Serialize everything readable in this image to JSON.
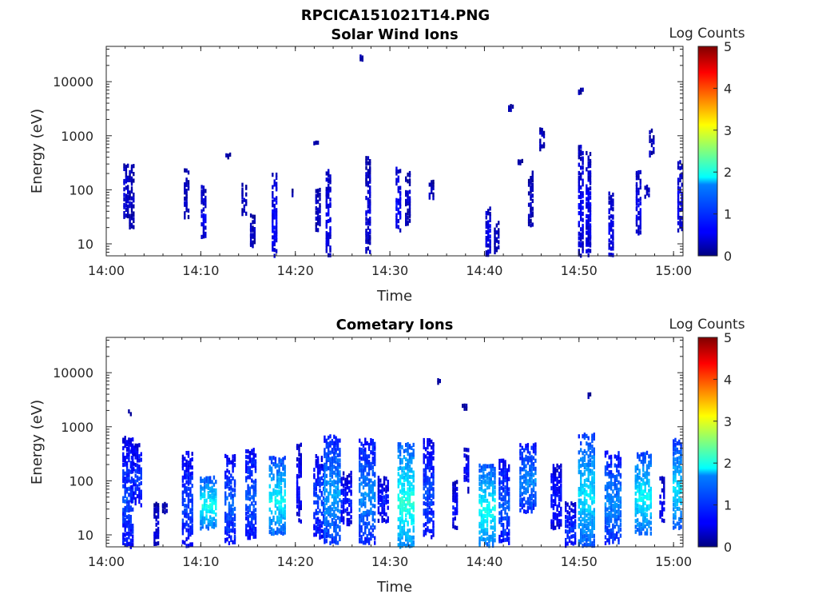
{
  "figure_title": "RPCICA151021T14.PNG",
  "colorbar_colormap": "jet",
  "chart_data": [
    {
      "type": "heatmap",
      "title": "Solar Wind Ions",
      "xlabel": "Time",
      "ylabel": "Energy (eV)",
      "y_scale": "log",
      "xlim": [
        "14:00",
        "15:01"
      ],
      "ylim": [
        6,
        45000
      ],
      "x_ticks": [
        "14:00",
        "14:10",
        "14:20",
        "14:30",
        "14:40",
        "14:50",
        "15:00"
      ],
      "y_ticks": [
        "10",
        "100",
        "1000",
        "10000"
      ],
      "colorbar": {
        "label": "Log Counts",
        "range": [
          0,
          5
        ],
        "ticks": [
          "0",
          "1",
          "2",
          "3",
          "4",
          "5"
        ]
      },
      "bursts": [
        {
          "t": 2.1,
          "e_lo": 35,
          "e_hi": 300,
          "level": 0.4
        },
        {
          "t": 2.7,
          "e_lo": 22,
          "e_hi": 300,
          "level": 0.3
        },
        {
          "t": 8.5,
          "e_lo": 35,
          "e_hi": 250,
          "level": 0.3
        },
        {
          "t": 10.3,
          "e_lo": 15,
          "e_hi": 120,
          "level": 0.5
        },
        {
          "t": 12.9,
          "e_lo": 420,
          "e_hi": 470,
          "level": 0.3
        },
        {
          "t": 14.6,
          "e_lo": 40,
          "e_hi": 130,
          "level": 0.3
        },
        {
          "t": 15.5,
          "e_lo": 10,
          "e_hi": 35,
          "level": 0.3
        },
        {
          "t": 17.8,
          "e_lo": 6,
          "e_hi": 200,
          "level": 0.6
        },
        {
          "t": 19.7,
          "e_lo": 90,
          "e_hi": 110,
          "level": 0.3
        },
        {
          "t": 22.4,
          "e_lo": 20,
          "e_hi": 120,
          "level": 0.3
        },
        {
          "t": 23.5,
          "e_lo": 7,
          "e_hi": 250,
          "level": 0.5
        },
        {
          "t": 22.2,
          "e_lo": 790,
          "e_hi": 850,
          "level": 0.3
        },
        {
          "t": 27.7,
          "e_lo": 8,
          "e_hi": 420,
          "level": 0.4
        },
        {
          "t": 26.9,
          "e_lo": 29000,
          "e_hi": 31000,
          "level": 0.3
        },
        {
          "t": 30.9,
          "e_lo": 20,
          "e_hi": 270,
          "level": 0.6
        },
        {
          "t": 31.9,
          "e_lo": 25,
          "e_hi": 230,
          "level": 0.3
        },
        {
          "t": 34.4,
          "e_lo": 80,
          "e_hi": 150,
          "level": 0.3
        },
        {
          "t": 40.4,
          "e_lo": 6,
          "e_hi": 50,
          "level": 0.5
        },
        {
          "t": 41.3,
          "e_lo": 8,
          "e_hi": 30,
          "level": 0.3
        },
        {
          "t": 42.8,
          "e_lo": 3400,
          "e_hi": 3700,
          "level": 0.3
        },
        {
          "t": 43.8,
          "e_lo": 330,
          "e_hi": 360,
          "level": 0.3
        },
        {
          "t": 44.9,
          "e_lo": 25,
          "e_hi": 230,
          "level": 0.3
        },
        {
          "t": 46.1,
          "e_lo": 520,
          "e_hi": 1600,
          "level": 0.3
        },
        {
          "t": 50.2,
          "e_lo": 6,
          "e_hi": 700,
          "level": 0.5
        },
        {
          "t": 51.0,
          "e_lo": 7,
          "e_hi": 500,
          "level": 0.5
        },
        {
          "t": 50.2,
          "e_lo": 7000,
          "e_hi": 7500,
          "level": 0.3
        },
        {
          "t": 53.4,
          "e_lo": 6,
          "e_hi": 90,
          "level": 0.5
        },
        {
          "t": 56.3,
          "e_lo": 17,
          "e_hi": 230,
          "level": 0.5
        },
        {
          "t": 57.2,
          "e_lo": 80,
          "e_hi": 130,
          "level": 0.3
        },
        {
          "t": 57.7,
          "e_lo": 420,
          "e_hi": 1500,
          "level": 0.3
        },
        {
          "t": 60.7,
          "e_lo": 20,
          "e_hi": 350,
          "level": 0.5
        }
      ]
    },
    {
      "type": "heatmap",
      "title": "Cometary Ions",
      "xlabel": "Time",
      "ylabel": "Energy (eV)",
      "y_scale": "log",
      "xlim": [
        "14:00",
        "15:01"
      ],
      "ylim": [
        6,
        45000
      ],
      "x_ticks": [
        "14:00",
        "14:10",
        "14:20",
        "14:30",
        "14:40",
        "14:50",
        "15:00"
      ],
      "y_ticks": [
        "10",
        "100",
        "1000",
        "10000"
      ],
      "colorbar": {
        "label": "Log Counts",
        "range": [
          0,
          5
        ],
        "ticks": [
          "0",
          "1",
          "2",
          "3",
          "4",
          "5"
        ]
      },
      "bursts": [
        {
          "t": 2.3,
          "e_lo": 6,
          "e_hi": 650,
          "level": 0.9
        },
        {
          "t": 3.2,
          "e_lo": 40,
          "e_hi": 500,
          "level": 0.8
        },
        {
          "t": 2.6,
          "e_lo": 1900,
          "e_hi": 2100,
          "level": 0.3
        },
        {
          "t": 5.3,
          "e_lo": 6,
          "e_hi": 40,
          "level": 0.4
        },
        {
          "t": 6.2,
          "e_lo": 30,
          "e_hi": 40,
          "level": 0.3
        },
        {
          "t": 8.6,
          "e_lo": 7,
          "e_hi": 350,
          "level": 0.9
        },
        {
          "t": 10.8,
          "e_lo": 15,
          "e_hi": 120,
          "level": 1.8
        },
        {
          "t": 13.1,
          "e_lo": 8,
          "e_hi": 300,
          "level": 1.0
        },
        {
          "t": 15.3,
          "e_lo": 10,
          "e_hi": 400,
          "level": 1.0
        },
        {
          "t": 18.1,
          "e_lo": 12,
          "e_hi": 280,
          "level": 1.7
        },
        {
          "t": 20.4,
          "e_lo": 20,
          "e_hi": 500,
          "level": 0.6
        },
        {
          "t": 22.5,
          "e_lo": 10,
          "e_hi": 300,
          "level": 0.9
        },
        {
          "t": 23.9,
          "e_lo": 8,
          "e_hi": 700,
          "level": 1.3
        },
        {
          "t": 25.4,
          "e_lo": 18,
          "e_hi": 150,
          "level": 0.7
        },
        {
          "t": 27.6,
          "e_lo": 8,
          "e_hi": 600,
          "level": 1.2
        },
        {
          "t": 29.3,
          "e_lo": 20,
          "e_hi": 120,
          "level": 0.7
        },
        {
          "t": 31.7,
          "e_lo": 6,
          "e_hi": 500,
          "level": 1.9
        },
        {
          "t": 34.1,
          "e_lo": 10,
          "e_hi": 600,
          "level": 0.9
        },
        {
          "t": 35.1,
          "e_lo": 7000,
          "e_hi": 8000,
          "level": 0.3
        },
        {
          "t": 36.9,
          "e_lo": 15,
          "e_hi": 100,
          "level": 0.6
        },
        {
          "t": 38.1,
          "e_lo": 70,
          "e_hi": 400,
          "level": 0.6
        },
        {
          "t": 37.9,
          "e_lo": 2400,
          "e_hi": 2700,
          "level": 0.3
        },
        {
          "t": 40.3,
          "e_lo": 7,
          "e_hi": 200,
          "level": 1.8
        },
        {
          "t": 42.1,
          "e_lo": 8,
          "e_hi": 250,
          "level": 1.0
        },
        {
          "t": 44.6,
          "e_lo": 30,
          "e_hi": 500,
          "level": 1.2
        },
        {
          "t": 47.6,
          "e_lo": 15,
          "e_hi": 200,
          "level": 0.7
        },
        {
          "t": 49.1,
          "e_lo": 6,
          "e_hi": 40,
          "level": 0.8
        },
        {
          "t": 50.8,
          "e_lo": 7,
          "e_hi": 750,
          "level": 1.6
        },
        {
          "t": 51.0,
          "e_lo": 4000,
          "e_hi": 4400,
          "level": 0.3
        },
        {
          "t": 53.6,
          "e_lo": 8,
          "e_hi": 350,
          "level": 1.2
        },
        {
          "t": 56.8,
          "e_lo": 12,
          "e_hi": 350,
          "level": 1.7
        },
        {
          "t": 58.8,
          "e_lo": 20,
          "e_hi": 120,
          "level": 0.6
        },
        {
          "t": 60.8,
          "e_lo": 15,
          "e_hi": 600,
          "level": 1.6
        }
      ]
    }
  ]
}
